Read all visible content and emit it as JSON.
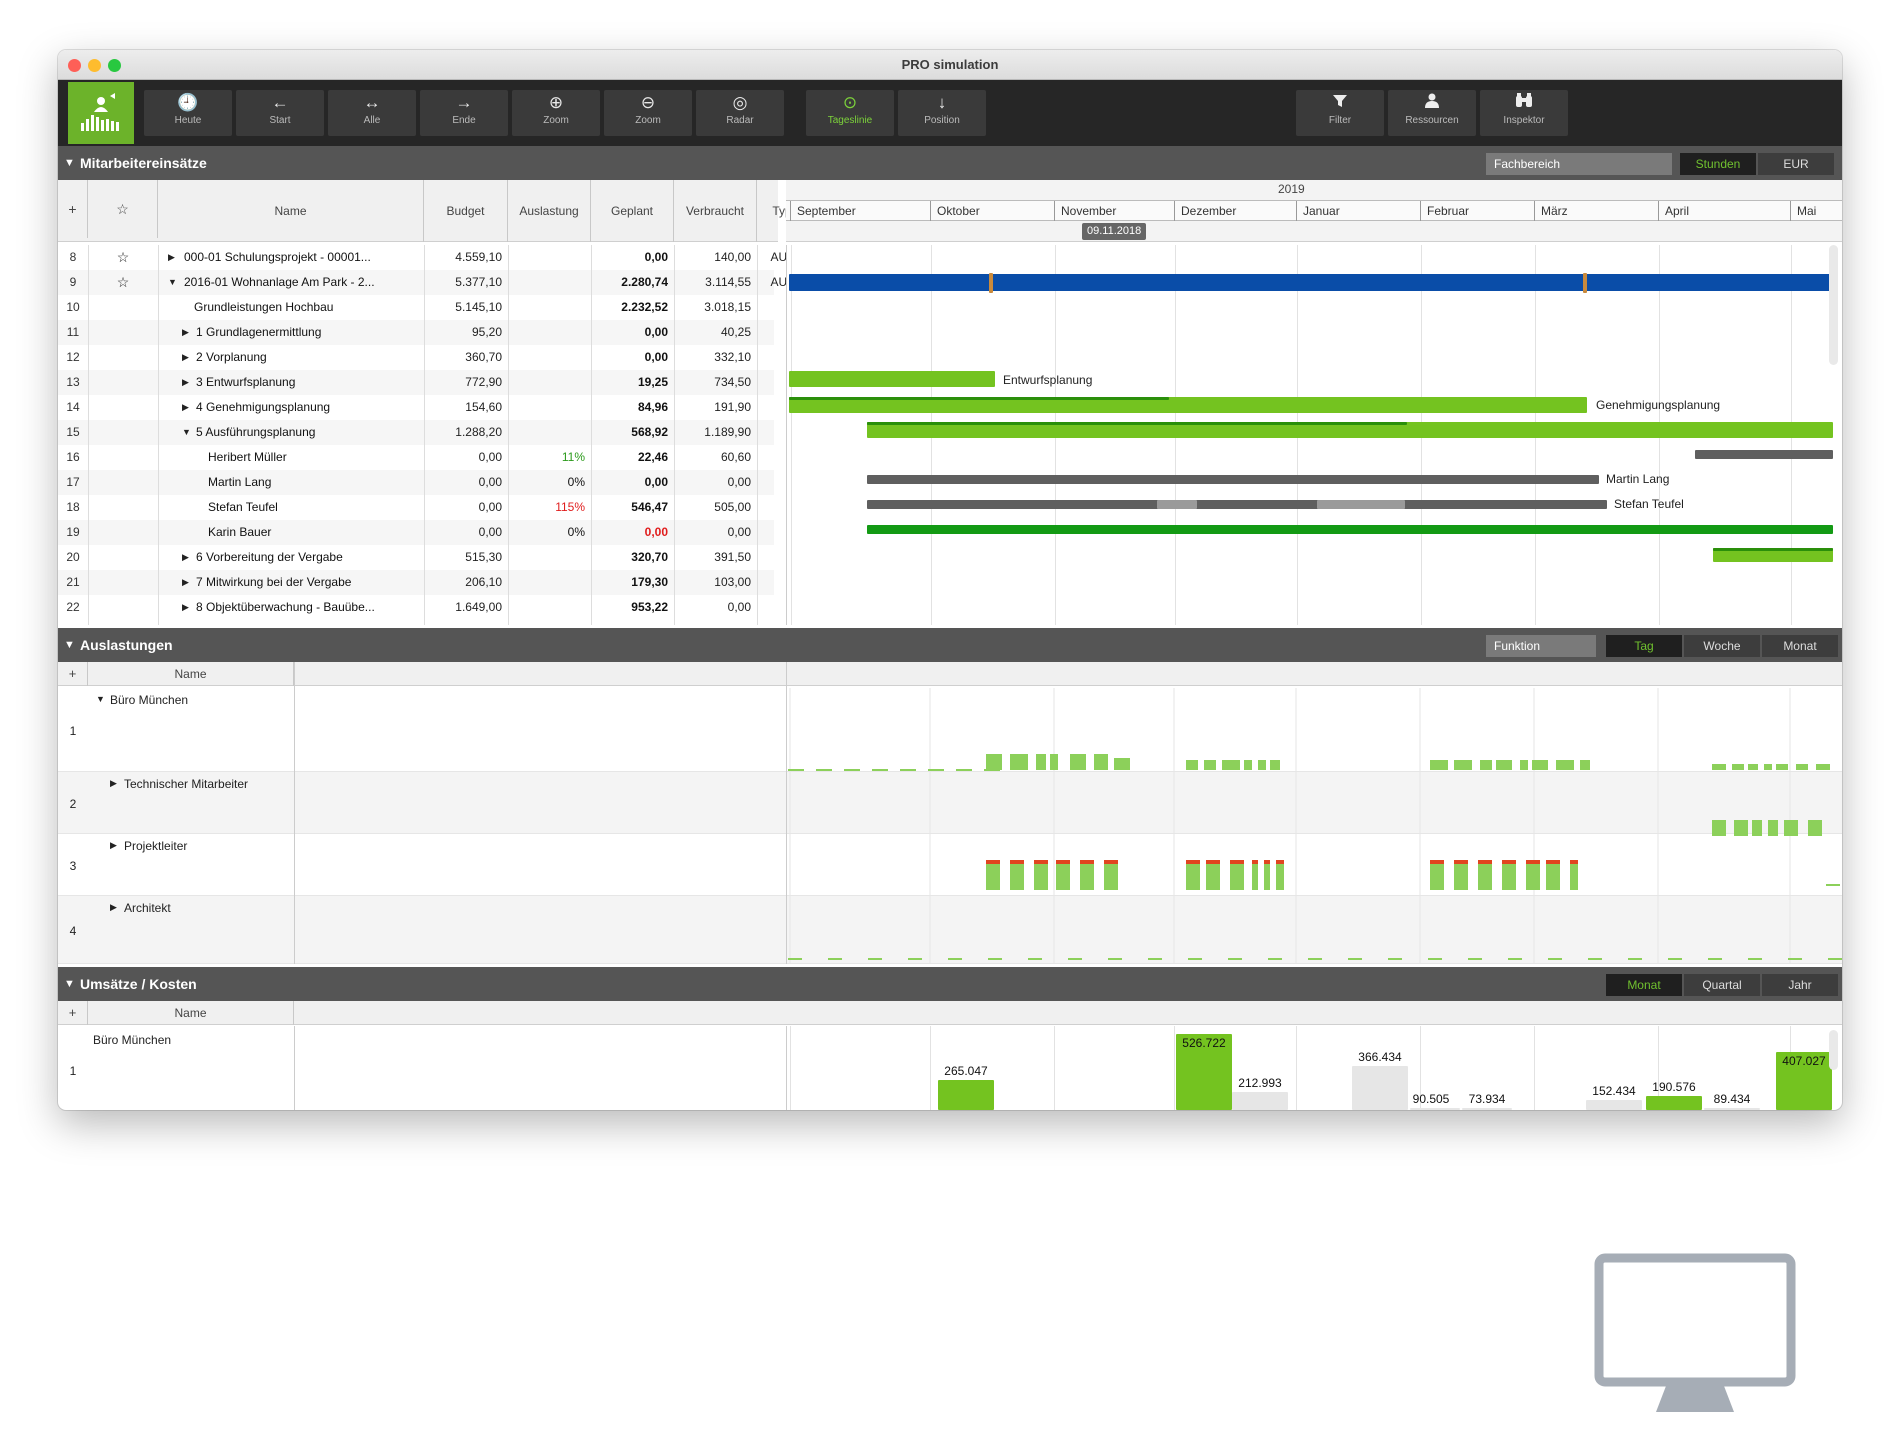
{
  "window": {
    "title": "PRO simulation"
  },
  "toolbar": {
    "buttons": [
      {
        "label": "Heute",
        "icon": "clock-icon"
      },
      {
        "label": "Start",
        "icon": "arrow-left-icon"
      },
      {
        "label": "Alle",
        "icon": "arrows-horizontal-icon"
      },
      {
        "label": "Ende",
        "icon": "arrow-right-icon"
      },
      {
        "label": "Zoom",
        "icon": "zoom-in-icon"
      },
      {
        "label": "Zoom",
        "icon": "zoom-out-icon"
      },
      {
        "label": "Radar",
        "icon": "radar-icon"
      },
      {
        "label": "Tageslinie",
        "icon": "clock-green-icon"
      },
      {
        "label": "Position",
        "icon": "arrow-down-icon"
      },
      {
        "label": "Filter",
        "icon": "filter-icon"
      },
      {
        "label": "Ressourcen",
        "icon": "person-icon"
      },
      {
        "label": "Inspektor",
        "icon": "binoculars-icon"
      }
    ],
    "icons": [
      "🕘",
      "←",
      "↔",
      "→",
      "⊕",
      "⊖",
      "◎",
      "⊙",
      "↓",
      "▼",
      "●",
      "⚲"
    ],
    "accent": "#6cb32a"
  },
  "section1": {
    "title": "Mitarbeitereinsätze",
    "field": "Fachbereich",
    "unit_options": [
      "Stunden",
      "EUR"
    ],
    "selected_unit": "Stunden",
    "columns": [
      "+",
      "☆",
      "Name",
      "Budget",
      "Auslastung",
      "Geplant",
      "Verbraucht",
      "Typ"
    ],
    "year": "2019",
    "months": [
      "September",
      "Oktober",
      "November",
      "Dezember",
      "Januar",
      "Februar",
      "März",
      "April",
      "Mai"
    ],
    "today": "09.11.2018",
    "rows": [
      {
        "n": "8",
        "star": "☆",
        "arrow": "▶",
        "name": "000-01 Schulungsprojekt - 00001...",
        "budget": "4.559,10",
        "ausl": "",
        "geplant": "0,00",
        "verbr": "140,00",
        "typ": "AUF"
      },
      {
        "n": "9",
        "star": "☆",
        "arrow": "▼",
        "name": "2016-01 Wohnanlage Am Park - 2...",
        "budget": "5.377,10",
        "ausl": "",
        "geplant": "2.280,74",
        "verbr": "3.114,55",
        "typ": "AUF"
      },
      {
        "n": "10",
        "star": "",
        "arrow": "",
        "name": "Grundleistungen Hochbau",
        "budget": "5.145,10",
        "ausl": "",
        "geplant": "2.232,52",
        "verbr": "3.018,15",
        "typ": ""
      },
      {
        "n": "11",
        "star": "",
        "arrow": "▶",
        "name": "1 Grundlagenermittlung",
        "budget": "95,20",
        "ausl": "",
        "geplant": "0,00",
        "verbr": "40,25",
        "typ": ""
      },
      {
        "n": "12",
        "star": "",
        "arrow": "▶",
        "name": "2 Vorplanung",
        "budget": "360,70",
        "ausl": "",
        "geplant": "0,00",
        "verbr": "332,10",
        "typ": ""
      },
      {
        "n": "13",
        "star": "",
        "arrow": "▶",
        "name": "3 Entwurfsplanung",
        "budget": "772,90",
        "ausl": "",
        "geplant": "19,25",
        "verbr": "734,50",
        "typ": ""
      },
      {
        "n": "14",
        "star": "",
        "arrow": "▶",
        "name": "4 Genehmigungsplanung",
        "budget": "154,60",
        "ausl": "",
        "geplant": "84,96",
        "verbr": "191,90",
        "typ": ""
      },
      {
        "n": "15",
        "star": "",
        "arrow": "▼",
        "name": "5 Ausführungsplanung",
        "budget": "1.288,20",
        "ausl": "",
        "geplant": "568,92",
        "verbr": "1.189,90",
        "typ": ""
      },
      {
        "n": "16",
        "star": "",
        "arrow": "",
        "name": "Heribert Müller",
        "budget": "0,00",
        "ausl": "11%",
        "geplant": "22,46",
        "verbr": "60,60",
        "typ": ""
      },
      {
        "n": "17",
        "star": "",
        "arrow": "",
        "name": "Martin Lang",
        "budget": "0,00",
        "ausl": "0%",
        "geplant": "0,00",
        "verbr": "0,00",
        "typ": ""
      },
      {
        "n": "18",
        "star": "",
        "arrow": "",
        "name": "Stefan Teufel",
        "budget": "0,00",
        "ausl": "115%",
        "geplant": "546,47",
        "verbr": "505,00",
        "typ": ""
      },
      {
        "n": "19",
        "star": "",
        "arrow": "",
        "name": "Karin Bauer",
        "budget": "0,00",
        "ausl": "0%",
        "geplant": "0,00",
        "verbr": "0,00",
        "typ": ""
      },
      {
        "n": "20",
        "star": "",
        "arrow": "▶",
        "name": "6 Vorbereitung der Vergabe",
        "budget": "515,30",
        "ausl": "",
        "geplant": "320,70",
        "verbr": "391,50",
        "typ": ""
      },
      {
        "n": "21",
        "star": "",
        "arrow": "▶",
        "name": "7 Mitwirkung bei der Vergabe",
        "budget": "206,10",
        "ausl": "",
        "geplant": "179,30",
        "verbr": "103,00",
        "typ": ""
      },
      {
        "n": "22",
        "star": "",
        "arrow": "▶",
        "name": "8 Objektüberwachung - Bauübe...",
        "budget": "1.649,00",
        "ausl": "",
        "geplant": "953,22",
        "verbr": "0,00",
        "typ": ""
      }
    ],
    "gantt_labels": [
      "Entwurfsplanung",
      "Genehmigungsplanung",
      "Martin Lang",
      "Stefan Teufel"
    ]
  },
  "section2": {
    "title": "Auslastungen",
    "field": "Funktion",
    "views": [
      "Tag",
      "Woche",
      "Monat"
    ],
    "selected": "Tag",
    "header": [
      "+",
      "Name"
    ],
    "rows": [
      {
        "n": "1",
        "arrow": "▼",
        "name": "Büro München"
      },
      {
        "n": "2",
        "arrow": "▶",
        "name": "Technischer Mitarbeiter"
      },
      {
        "n": "3",
        "arrow": "▶",
        "name": "Projektleiter"
      },
      {
        "n": "4",
        "arrow": "▶",
        "name": "Architekt"
      }
    ]
  },
  "section3": {
    "title": "Umsätze / Kosten",
    "views": [
      "Monat",
      "Quartal",
      "Jahr"
    ],
    "selected": "Monat",
    "header": [
      "+",
      "Name"
    ],
    "rows": [
      {
        "n": "1",
        "name": "Büro München"
      }
    ],
    "values": [
      "265.047",
      "526.722",
      "212.993",
      "366.434",
      "90.505",
      "73.934",
      "152.434",
      "190.576",
      "89.434",
      "407.027"
    ]
  }
}
